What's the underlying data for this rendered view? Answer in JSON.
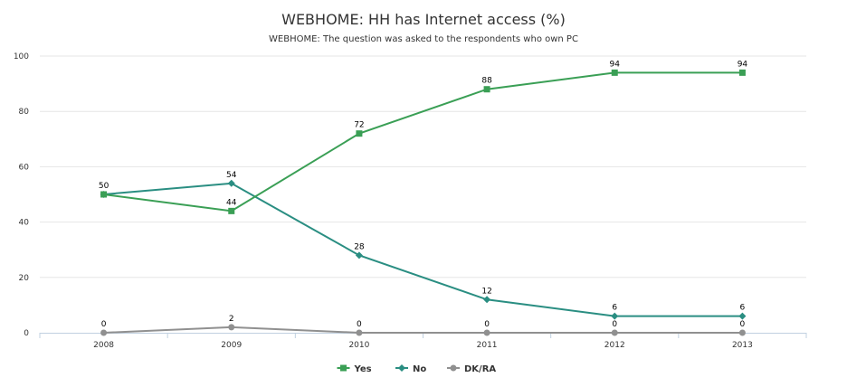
{
  "chart_data": {
    "type": "line",
    "title": "WEBHOME: HH has Internet access (%)",
    "subtitle": "WEBHOME: The question was asked to the respondents who own PC",
    "xlabel": "",
    "ylabel": "",
    "categories": [
      "2008",
      "2009",
      "2010",
      "2011",
      "2012",
      "2013"
    ],
    "ylim": [
      0,
      100
    ],
    "yticks": [
      0,
      20,
      40,
      60,
      80,
      100
    ],
    "grid": true,
    "legend": "bottom-center",
    "series": [
      {
        "name": "Yes",
        "values": [
          50,
          44,
          72,
          88,
          94,
          94
        ],
        "color": "#3a9f55",
        "marker": "square"
      },
      {
        "name": "No",
        "values": [
          50,
          54,
          28,
          12,
          6,
          6
        ],
        "color": "#2a8e82",
        "marker": "diamond"
      },
      {
        "name": "DK/RA",
        "values": [
          0,
          2,
          0,
          0,
          0,
          0
        ],
        "color": "#909090",
        "marker": "circle"
      }
    ]
  }
}
